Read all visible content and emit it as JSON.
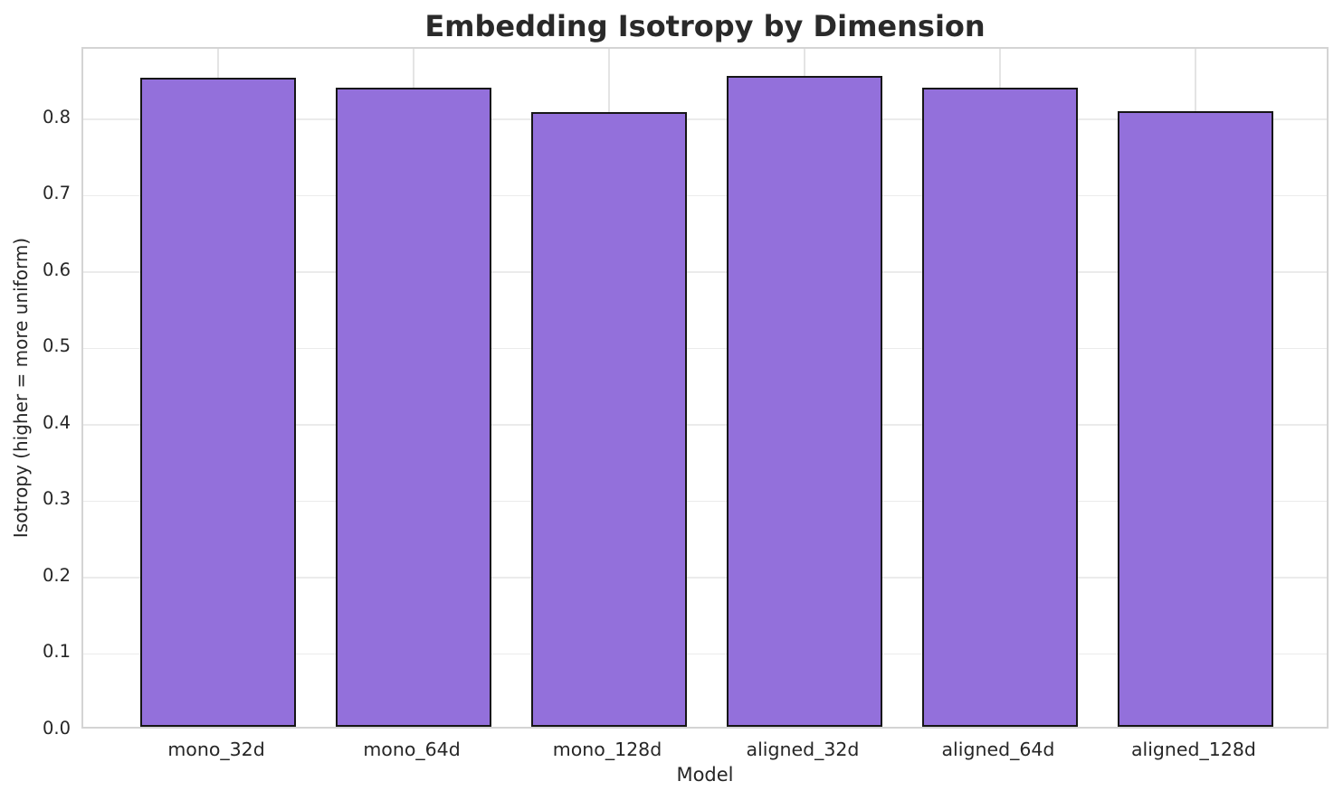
{
  "chart_data": {
    "type": "bar",
    "title": "Embedding Isotropy by Dimension",
    "xlabel": "Model",
    "ylabel": "Isotropy (higher = more uniform)",
    "categories": [
      "mono_32d",
      "mono_64d",
      "mono_128d",
      "aligned_32d",
      "aligned_64d",
      "aligned_128d"
    ],
    "values": [
      0.85,
      0.836,
      0.804,
      0.852,
      0.837,
      0.806
    ],
    "yticks": [
      "0.0",
      "0.1",
      "0.2",
      "0.3",
      "0.4",
      "0.5",
      "0.6",
      "0.7",
      "0.8"
    ],
    "ylim": [
      0,
      0.892
    ],
    "xlim": [
      -0.69,
      5.69
    ],
    "bar_width": 0.8,
    "grid": true,
    "legend": "none",
    "colors": {
      "bar_fill": "#9370DB",
      "bar_edge": "#161616",
      "grid_line": "#ebebeb",
      "spine": "#d4d4d4",
      "text": "#262626",
      "background": "#ffffff"
    }
  }
}
